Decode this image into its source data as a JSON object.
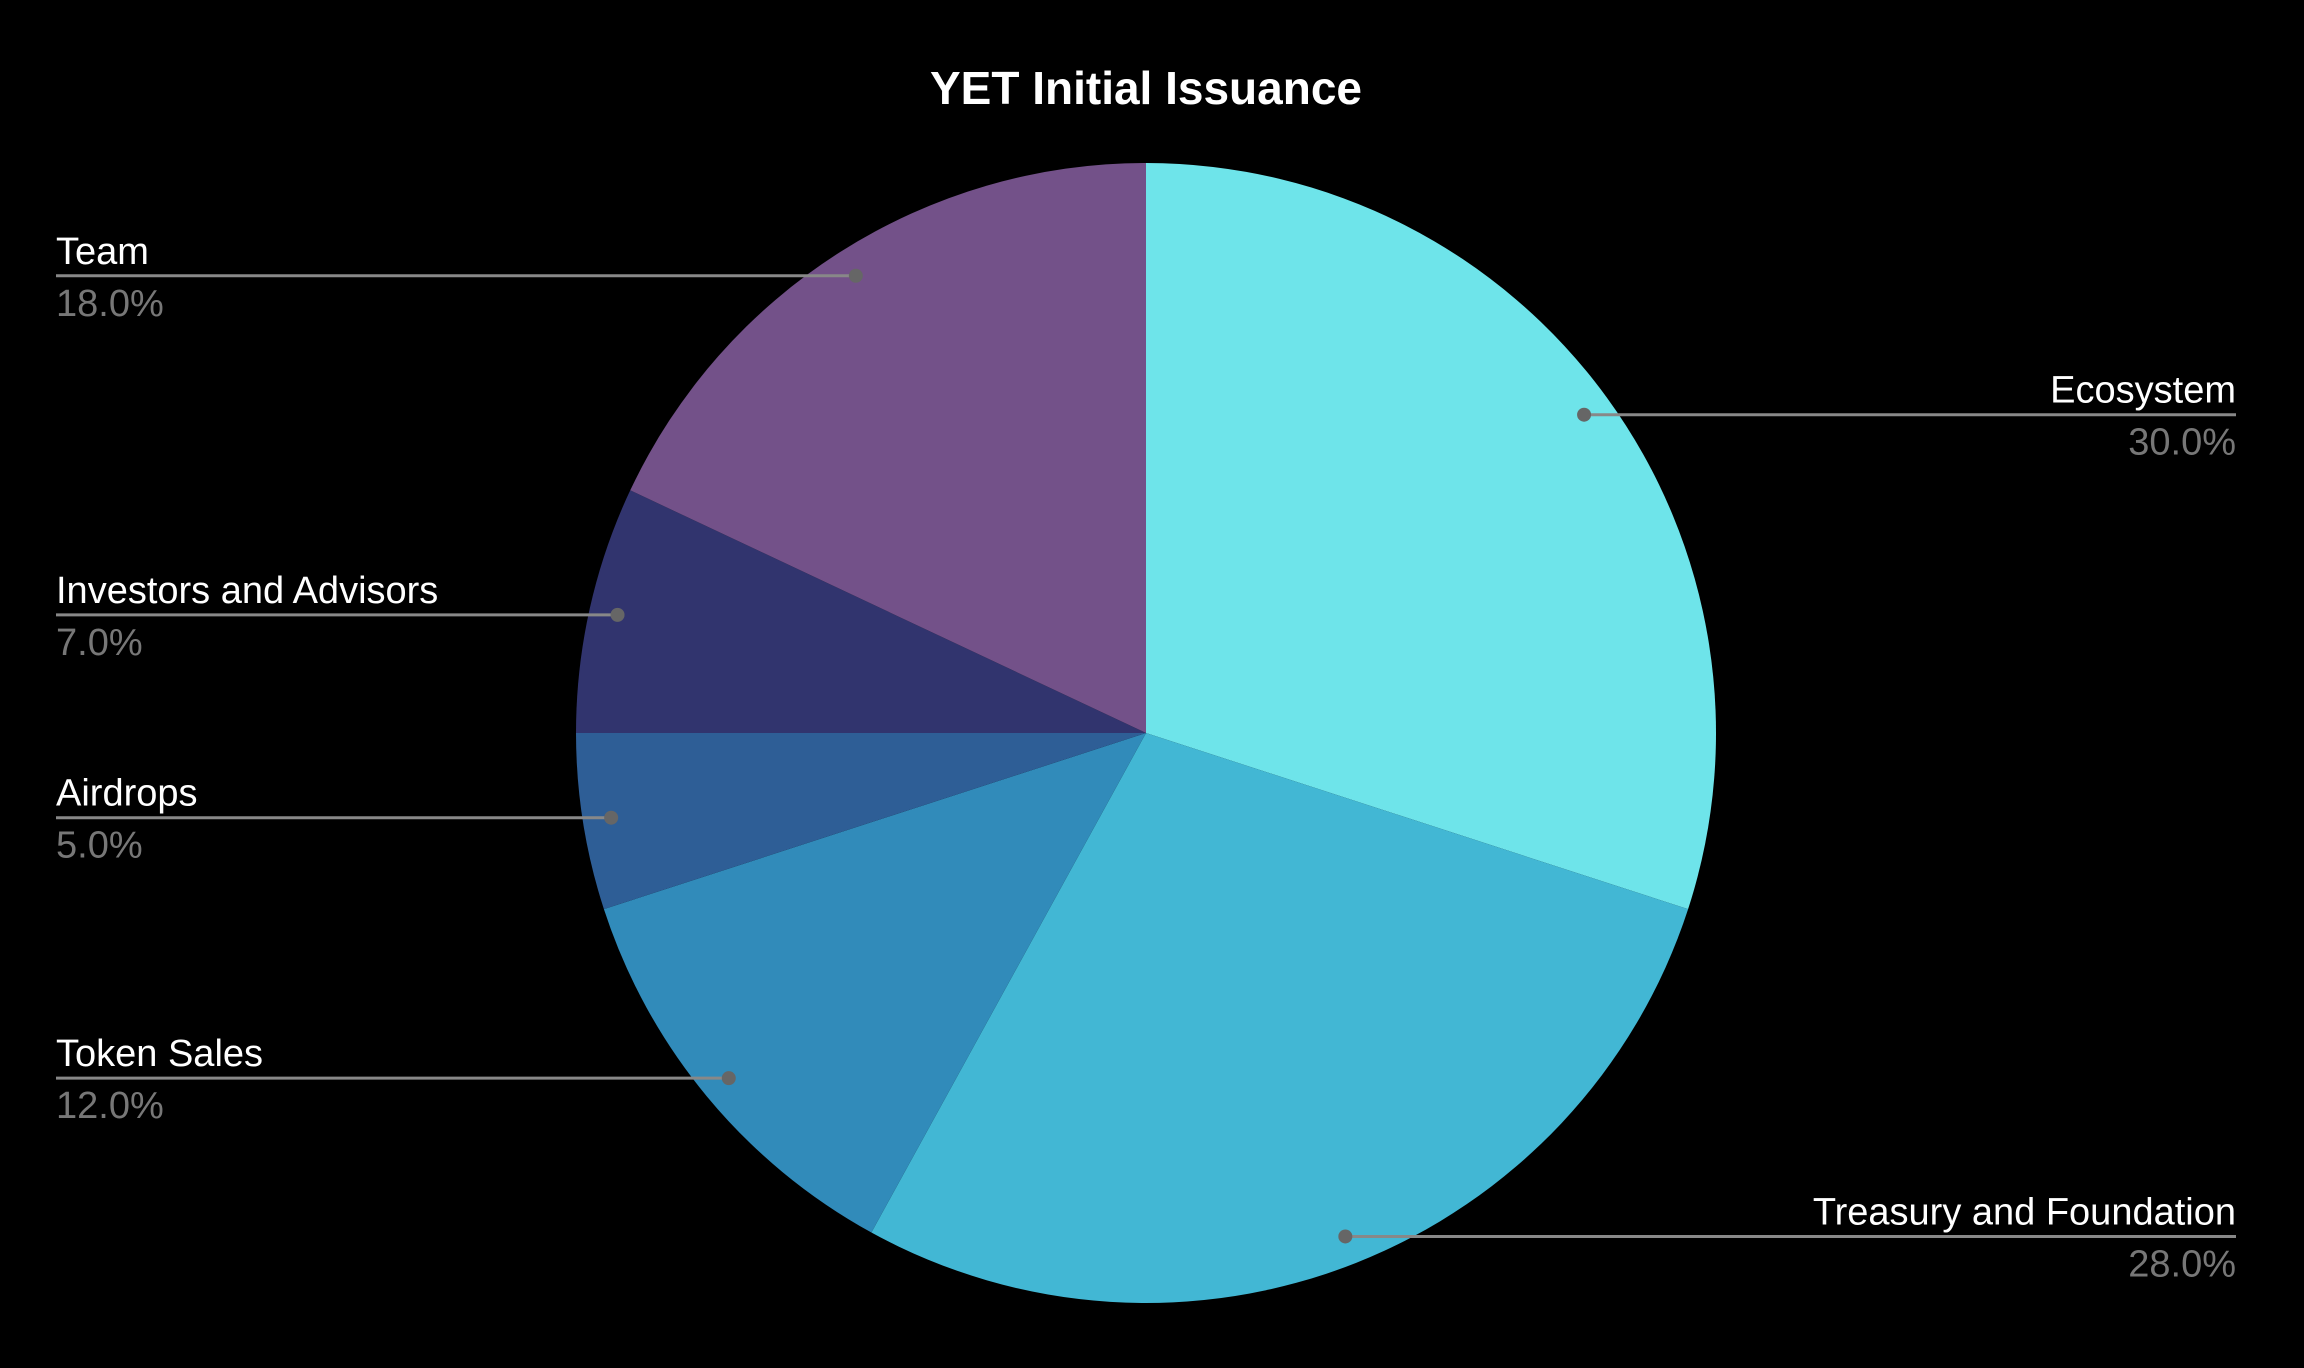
{
  "chart_data": {
    "type": "pie",
    "title": "YET Initial Issuance",
    "categories": [
      "Ecosystem",
      "Treasury and Foundation",
      "Token Sales",
      "Airdrops",
      "Investors and Advisors",
      "Team"
    ],
    "values": [
      30,
      28,
      12,
      5,
      7,
      18
    ],
    "value_labels": [
      "30.0%",
      "28.0%",
      "12.0%",
      "5.0%",
      "7.0%",
      "18.0%"
    ],
    "colors": [
      "#6ee4ea",
      "#42b7d4",
      "#318bba",
      "#2e5e96",
      "#31346e",
      "#735189"
    ]
  }
}
